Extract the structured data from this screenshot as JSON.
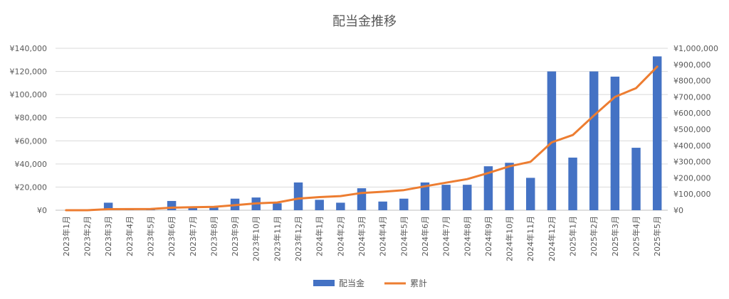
{
  "chart_data": {
    "type": "bar",
    "title": "配当金推移",
    "categories": [
      "2023年1月",
      "2023年2月",
      "2023年3月",
      "2023年4月",
      "2023年5月",
      "2023年6月",
      "2023年7月",
      "2023年8月",
      "2023年9月",
      "2023年10月",
      "2023年11月",
      "2023年12月",
      "2024年1月",
      "2024年2月",
      "2024年3月",
      "2024年4月",
      "2024年5月",
      "2024年6月",
      "2024年7月",
      "2024年8月",
      "2024年9月",
      "2024年10月",
      "2024年11月",
      "2024年12月",
      "2025年1月",
      "2025年2月",
      "2025年3月",
      "2025年4月",
      "2025年5月"
    ],
    "series": [
      {
        "name": "配当金",
        "type": "bar",
        "axis": "left",
        "color": "#4472C4",
        "values": [
          0,
          0,
          6500,
          500,
          1000,
          8000,
          2500,
          2500,
          10000,
          11000,
          6000,
          24000,
          9000,
          6500,
          19000,
          7500,
          10000,
          24000,
          22000,
          22000,
          38000,
          41000,
          28000,
          120000,
          45500,
          120000,
          115500,
          54000,
          133000
        ]
      },
      {
        "name": "累計",
        "type": "line",
        "axis": "right",
        "color": "#ED7D31",
        "values": [
          0,
          0,
          6500,
          7000,
          8000,
          16000,
          18500,
          21000,
          31000,
          42000,
          48000,
          72000,
          81000,
          87500,
          106500,
          114000,
          124000,
          148000,
          170000,
          192000,
          230000,
          271000,
          299000,
          419000,
          464500,
          584500,
          700000,
          754000,
          887000
        ]
      }
    ],
    "y_left": {
      "min": 0,
      "max": 140000,
      "step": 20000,
      "tick_labels": [
        "¥0",
        "¥20,000",
        "¥40,000",
        "¥60,000",
        "¥80,000",
        "¥100,000",
        "¥120,000",
        "¥140,000"
      ]
    },
    "y_right": {
      "min": 0,
      "max": 1000000,
      "step": 100000,
      "tick_labels": [
        "¥0",
        "¥100,000",
        "¥200,000",
        "¥300,000",
        "¥400,000",
        "¥500,000",
        "¥600,000",
        "¥700,000",
        "¥800,000",
        "¥900,000",
        "¥1,000,000"
      ]
    },
    "grid": true,
    "legend_position": "bottom",
    "legend": [
      "配当金",
      "累計"
    ]
  }
}
